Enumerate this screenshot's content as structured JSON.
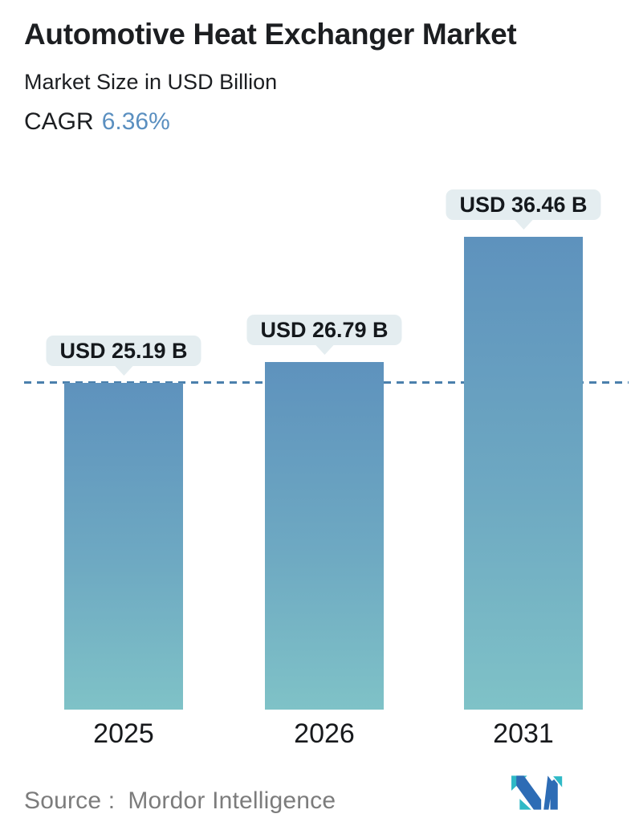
{
  "header": {
    "title": "Automotive Heat Exchanger Market",
    "subtitle": "Market Size in USD Billion",
    "cagr_label": "CAGR",
    "cagr_value": "6.36%"
  },
  "chart_data": {
    "type": "bar",
    "title": "Automotive Heat Exchanger Market",
    "subtitle": "Market Size in USD Billion",
    "unit": "USD Billion",
    "cagr_percent": 6.36,
    "categories": [
      "2025",
      "2026",
      "2031"
    ],
    "values": [
      25.19,
      26.79,
      36.46
    ],
    "value_labels": [
      "USD 25.19 B",
      "USD 26.79 B",
      "USD 36.46 B"
    ],
    "reference_line": {
      "value": 25.19,
      "style": "dashed",
      "note": "level of 2025 bar top"
    },
    "grid": false,
    "legend": false,
    "y_axis_visible": false
  },
  "footer": {
    "source_label": "Source :",
    "source_name": "Mordor Intelligence",
    "logo": "mordor-intelligence-logo"
  },
  "colors": {
    "bar_gradient_top": "#5e92bd",
    "bar_gradient_bottom": "#7fc2c7",
    "reference_line": "#4b80ac",
    "value_pill_bg": "#e4edf0",
    "accent_blue": "#5a8fc0",
    "text_dark": "#1c1e21",
    "source_gray": "#7c7c7c",
    "logo_blue": "#2d6cb5",
    "logo_teal": "#2fb9c6"
  }
}
